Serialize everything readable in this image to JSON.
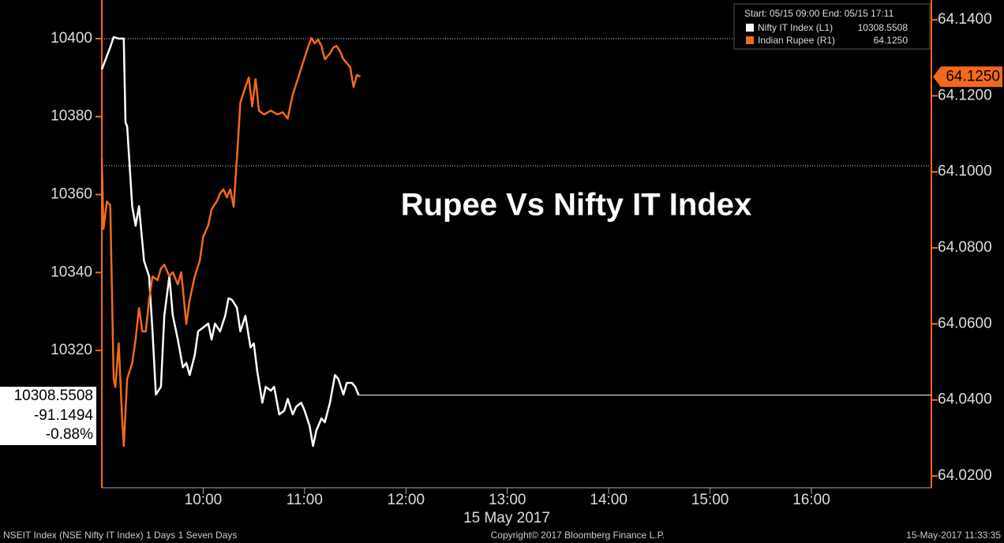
{
  "chart_data": {
    "type": "line",
    "title": "Rupee Vs Nifty IT Index",
    "x_label": "15 May 2017",
    "xlim": [
      "09:00",
      "17:11"
    ],
    "xticks": [
      "10:00",
      "11:00",
      "12:00",
      "13:00",
      "14:00",
      "15:00",
      "16:00"
    ],
    "ylim": [
      10284.8,
      10409.9
    ],
    "yticks": [
      10320,
      10340,
      10360,
      10380,
      10400
    ],
    "y2lim": [
      64.0169,
      64.1452
    ],
    "y2ticks": [
      {
        "value": 64.02,
        "label": "64.0200"
      },
      {
        "value": 64.04,
        "label": "64.0400"
      },
      {
        "value": 64.06,
        "label": "64.0600"
      },
      {
        "value": 64.08,
        "label": "64.0800"
      },
      {
        "value": 64.1,
        "label": "64.1000"
      },
      {
        "value": 64.12,
        "label": "64.1200"
      },
      {
        "value": 64.14,
        "label": "64.1400"
      }
    ],
    "legend": {
      "header": "Start: 05/15 09:00 End: 05/15 17:11",
      "entries": [
        {
          "label": "Nifty IT Index (L1)",
          "value": "10308.5508"
        },
        {
          "label": "Indian Rupee (R1)",
          "value": "64.1250"
        }
      ]
    },
    "last_box": {
      "last": "10308.5508",
      "change": "-91.1494",
      "pct_change": "-0.88%"
    },
    "right_tag": "64.1250",
    "series": [
      {
        "name": "Nifty IT Index",
        "color": "#ffffff",
        "x": [
          "09:00",
          "09:05",
          "09:07",
          "09:10",
          "09:13",
          "09:14",
          "09:15",
          "09:18",
          "09:20",
          "09:22",
          "09:25",
          "09:28",
          "09:30",
          "09:32",
          "09:35",
          "09:37",
          "09:40",
          "09:42",
          "09:45",
          "09:48",
          "09:50",
          "09:52",
          "09:55",
          "09:57",
          "10:00",
          "10:03",
          "10:05",
          "10:07",
          "10:10",
          "10:13",
          "10:15",
          "10:17",
          "10:20",
          "10:22",
          "10:25",
          "10:28",
          "10:30",
          "10:32",
          "10:35",
          "10:37",
          "10:40",
          "10:42",
          "10:45",
          "10:48",
          "10:50",
          "10:53",
          "10:55",
          "10:58",
          "11:00",
          "11:03",
          "11:05",
          "11:07",
          "11:10",
          "11:12",
          "11:15",
          "11:18",
          "11:20",
          "11:23",
          "11:25",
          "11:28",
          "11:30",
          "11:32"
        ],
        "values": [
          10392.1,
          10397.8,
          10400.4,
          10400,
          10400,
          10378.5,
          10377.5,
          10357,
          10352,
          10357,
          10343,
          10339,
          10325,
          10308.7,
          10310.7,
          10329,
          10339,
          10329,
          10322.8,
          10315.7,
          10316.8,
          10313.7,
          10318.8,
          10324.9,
          10325.9,
          10326.9,
          10322.8,
          10326.9,
          10324.9,
          10328.9,
          10333.4,
          10333,
          10331,
          10324.9,
          10328.9,
          10320.8,
          10321.8,
          10314.7,
          10306.6,
          10310.7,
          10309.7,
          10310.7,
          10303.6,
          10304.6,
          10307.6,
          10303.6,
          10305.6,
          10306.6,
          10304.6,
          10300.6,
          10295.5,
          10299.5,
          10302.6,
          10301.6,
          10306.6,
          10313.7,
          10312.7,
          10308.7,
          10311.7,
          10311.7,
          10310.7,
          10308.5508
        ]
      },
      {
        "name": "Indian Rupee",
        "color": "#f26a1b",
        "axis": "y2",
        "x": [
          "09:00",
          "09:01",
          "09:03",
          "09:05",
          "09:07",
          "09:08",
          "09:10",
          "09:12",
          "09:13",
          "09:15",
          "09:18",
          "09:20",
          "09:22",
          "09:24",
          "09:26",
          "09:28",
          "09:30",
          "09:33",
          "09:35",
          "09:37",
          "09:40",
          "09:42",
          "09:45",
          "09:47",
          "09:50",
          "09:52",
          "09:55",
          "09:58",
          "10:00",
          "10:03",
          "10:05",
          "10:08",
          "10:10",
          "10:12",
          "10:14",
          "10:16",
          "10:18",
          "10:20",
          "10:22",
          "10:25",
          "10:27",
          "10:29",
          "10:31",
          "10:33",
          "10:36",
          "10:40",
          "10:44",
          "10:47",
          "10:50",
          "10:53",
          "10:56",
          "10:59",
          "11:02",
          "11:04",
          "11:06",
          "11:08",
          "11:10",
          "11:12",
          "11:15",
          "11:17",
          "11:19",
          "11:21",
          "11:23",
          "11:25",
          "11:27",
          "11:29",
          "11:31",
          "11:33"
        ],
        "values": [
          64.1037,
          64.085,
          64.0922,
          64.0912,
          64.0455,
          64.0434,
          64.0549,
          64.0351,
          64.0279,
          64.0455,
          64.0497,
          64.0559,
          64.0642,
          64.058,
          64.058,
          64.0663,
          64.0725,
          64.0715,
          64.0746,
          64.0756,
          64.0725,
          64.0736,
          64.0704,
          64.0736,
          64.06,
          64.0663,
          64.0725,
          64.0767,
          64.0829,
          64.086,
          64.0902,
          64.0922,
          64.0943,
          64.0954,
          64.0933,
          64.0954,
          64.0908,
          64.1037,
          64.1182,
          64.1223,
          64.1248,
          64.1172,
          64.1244,
          64.1161,
          64.1151,
          64.1161,
          64.1151,
          64.1157,
          64.114,
          64.1203,
          64.1244,
          64.1286,
          64.1327,
          64.1352,
          64.1338,
          64.1348,
          64.1331,
          64.1296,
          64.1311,
          64.1327,
          64.1331,
          64.1317,
          64.1296,
          64.1286,
          64.1275,
          64.1223,
          64.1255,
          64.125
        ]
      }
    ],
    "footer": {
      "left": "NSEIT Index (NSE Nifty IT Index) 1 Days 1 Seven Days",
      "center": "Copyright© 2017 Bloomberg Finance L.P.",
      "right": "15-May-2017 11:33:35"
    }
  }
}
